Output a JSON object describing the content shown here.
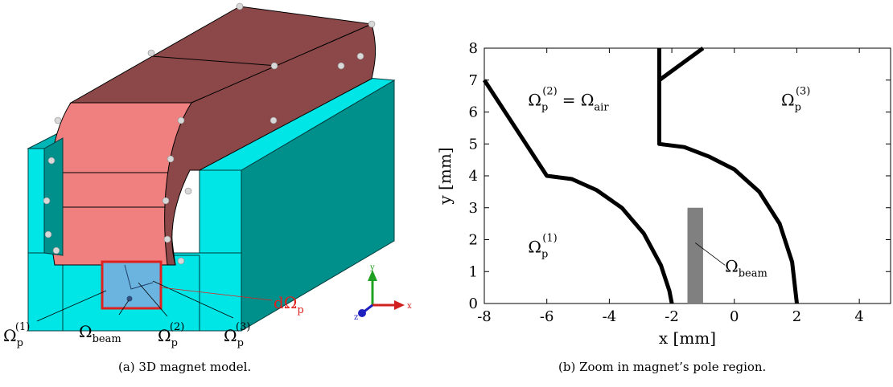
{
  "figure": {
    "panel_a": {
      "caption": "(a) 3D magnet model.",
      "labels": {
        "omega_p1_base": "Ω",
        "omega_p1_sub": "p",
        "omega_p1_sup": "(1)",
        "omega_beam_base": "Ω",
        "omega_beam_sub": "beam",
        "omega_p2_base": "Ω",
        "omega_p2_sub": "p",
        "omega_p2_sup": "(2)",
        "omega_p3_base": "Ω",
        "omega_p3_sub": "p",
        "omega_p3_sup": "(3)",
        "d_omega_base": "dΩ",
        "d_omega_sub": "p"
      },
      "axes_triad": {
        "y": "y",
        "x": "x",
        "z": "z"
      },
      "colors": {
        "yoke": "#00e5e6",
        "yoke_dark": "#00908c",
        "coil": "#f08080",
        "coil_dark": "#8c4848",
        "boundary": "#e0201e"
      }
    },
    "panel_b": {
      "caption": "(b) Zoom in magnet’s pole region."
    }
  },
  "chart_data": {
    "type": "line",
    "title": "",
    "xlabel": "x [mm]",
    "ylabel": "y [mm]",
    "xlim": [
      -8,
      5
    ],
    "ylim": [
      0,
      8
    ],
    "x_ticks": [
      "-8",
      "-6",
      "-4",
      "-2",
      "0",
      "2",
      "4"
    ],
    "y_ticks": [
      "0",
      "1",
      "2",
      "3",
      "4",
      "5",
      "6",
      "7",
      "8"
    ],
    "grid": false,
    "series": [
      {
        "points": [
          [
            -8,
            7.0
          ],
          [
            -6,
            4.0
          ],
          [
            -5.2,
            3.9
          ],
          [
            -4.4,
            3.55
          ],
          [
            -3.6,
            3.0
          ],
          [
            -2.9,
            2.2
          ],
          [
            -2.35,
            1.2
          ],
          [
            -2.08,
            0.4
          ],
          [
            -2.0,
            0.0
          ]
        ],
        "color": "#000000"
      },
      {
        "points": [
          [
            -2.4,
            8.0
          ],
          [
            -2.4,
            7.0
          ],
          [
            -2.4,
            5.0
          ],
          [
            -1.6,
            4.9
          ],
          [
            -0.8,
            4.6
          ],
          [
            0.0,
            4.2
          ],
          [
            0.8,
            3.5
          ],
          [
            1.45,
            2.5
          ],
          [
            1.85,
            1.3
          ],
          [
            2.0,
            0.0
          ]
        ],
        "color": "#000000"
      },
      {
        "points": [
          [
            -2.4,
            7.0
          ],
          [
            -1.0,
            8.0
          ]
        ],
        "color": "#000000"
      }
    ],
    "beam_rect": {
      "x0": -1.5,
      "x1": -1.0,
      "y0": 0,
      "y1": 3,
      "color": "#808080"
    },
    "annotations": {
      "omega_p2_air": {
        "base": "Ω",
        "sub": "p",
        "sup": "(2)",
        "eq": "= Ω",
        "eq_sub": "air",
        "x": -6.6,
        "y": 6.2
      },
      "omega_p3": {
        "base": "Ω",
        "sub": "p",
        "sup": "(3)",
        "x": 1.5,
        "y": 6.2
      },
      "omega_p1": {
        "base": "Ω",
        "sub": "p",
        "sup": "(1)",
        "x": -6.6,
        "y": 1.6
      },
      "omega_beam": {
        "base": "Ω",
        "sub": "beam",
        "x": -0.3,
        "y": 1.0
      }
    }
  }
}
